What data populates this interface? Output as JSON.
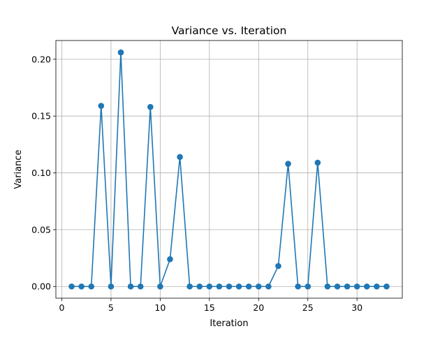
{
  "chart_data": {
    "type": "line",
    "title": "Variance vs. Iteration",
    "xlabel": "Iteration",
    "ylabel": "Variance",
    "xlim": [
      -0.6,
      34.6
    ],
    "ylim": [
      -0.0103,
      0.2165
    ],
    "xticks": [
      0,
      5,
      10,
      15,
      20,
      25,
      30
    ],
    "xtick_labels": [
      "0",
      "5",
      "10",
      "15",
      "20",
      "25",
      "30"
    ],
    "yticks": [
      0.0,
      0.05,
      0.1,
      0.15,
      0.2
    ],
    "ytick_labels": [
      "0.00",
      "0.05",
      "0.10",
      "0.15",
      "0.20"
    ],
    "grid": true,
    "marker": "circle",
    "line_color": "#1f77b4",
    "grid_color": "#b0b0b0",
    "series": [
      {
        "x": [
          1,
          2,
          3,
          4,
          5,
          6,
          7,
          8,
          9,
          10,
          11,
          12,
          13,
          14,
          15,
          16,
          17,
          18,
          19,
          20,
          21,
          22,
          23,
          24,
          25,
          26,
          27,
          28,
          29,
          30,
          31,
          32,
          33
        ],
        "values": [
          0.0,
          0.0,
          0.0,
          0.159,
          0.0,
          0.206,
          0.0,
          0.0,
          0.158,
          0.0,
          0.024,
          0.114,
          0.0,
          0.0,
          0.0,
          0.0,
          0.0,
          0.0,
          0.0,
          0.0,
          0.0,
          0.018,
          0.108,
          0.0,
          0.0,
          0.109,
          0.0,
          0.0,
          0.0,
          0.0,
          0.0,
          0.0,
          0.0
        ]
      }
    ]
  }
}
